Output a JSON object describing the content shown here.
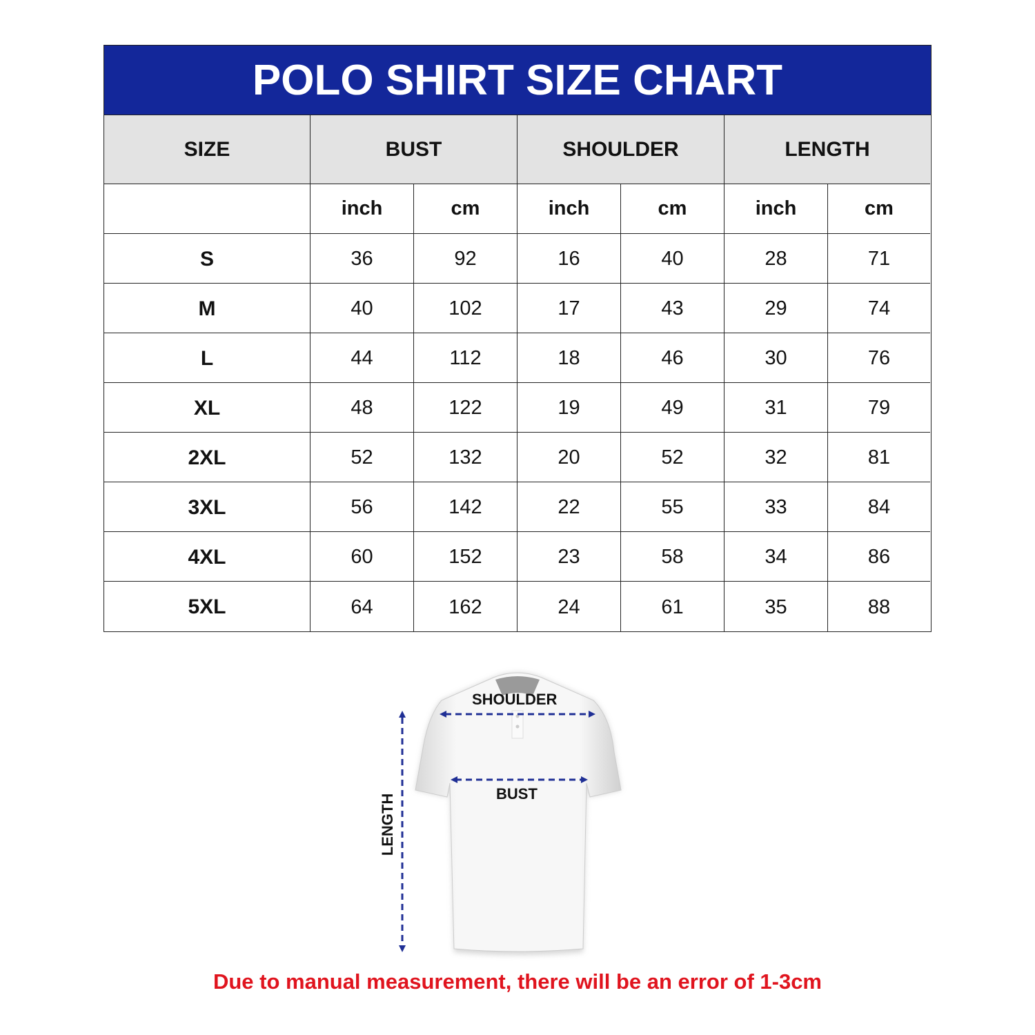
{
  "title": "POLO SHIRT SIZE CHART",
  "columns": {
    "size": "SIZE",
    "groups": [
      "BUST",
      "SHOULDER",
      "LENGTH"
    ],
    "units": [
      "inch",
      "cm",
      "inch",
      "cm",
      "inch",
      "cm"
    ]
  },
  "rows": [
    [
      "S",
      "36",
      "92",
      "16",
      "40",
      "28",
      "71"
    ],
    [
      "M",
      "40",
      "102",
      "17",
      "43",
      "29",
      "74"
    ],
    [
      "L",
      "44",
      "112",
      "18",
      "46",
      "30",
      "76"
    ],
    [
      "XL",
      "48",
      "122",
      "19",
      "49",
      "31",
      "79"
    ],
    [
      "2XL",
      "52",
      "132",
      "20",
      "52",
      "32",
      "81"
    ],
    [
      "3XL",
      "56",
      "142",
      "22",
      "55",
      "33",
      "84"
    ],
    [
      "4XL",
      "60",
      "152",
      "23",
      "58",
      "34",
      "86"
    ],
    [
      "5XL",
      "64",
      "162",
      "24",
      "61",
      "35",
      "88"
    ]
  ],
  "diagram": {
    "shoulder_label": "SHOULDER",
    "bust_label": "BUST",
    "length_label": "LENGTH"
  },
  "note": "Due to manual measurement, there will be an error of 1-3cm",
  "colors": {
    "header": "#13279a",
    "group_header": "#e3e3e3",
    "arrow": "#1f2f95",
    "note": "#e0141e"
  }
}
